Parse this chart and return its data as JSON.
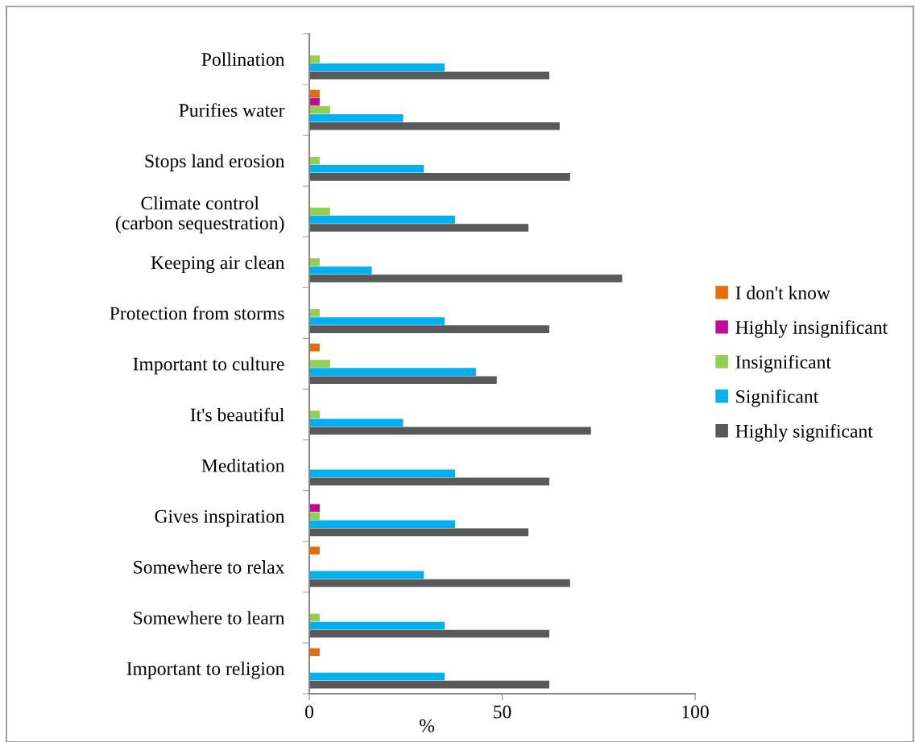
{
  "chart_data": {
    "type": "bar",
    "orientation": "horizontal",
    "xlabel": "%",
    "categories": [
      "Pollination",
      "Purifies water",
      "Stops land erosion",
      "Climate control (carbon sequestration)",
      "Keeping air clean",
      "Protection from storms",
      "Important to culture",
      "It's beautiful",
      "Meditation",
      "Gives inspiration",
      "Somewhere to relax",
      "Somewhere to learn",
      "Important to religion"
    ],
    "series": [
      {
        "name": "I don't know",
        "color": "#e46c0a",
        "values": [
          null,
          2.7,
          null,
          null,
          null,
          null,
          2.7,
          null,
          null,
          null,
          2.7,
          null,
          2.7
        ]
      },
      {
        "name": "Highly insignificant",
        "color": "#c00b9a",
        "values": [
          null,
          2.7,
          null,
          null,
          null,
          null,
          null,
          null,
          null,
          2.7,
          null,
          null,
          null
        ]
      },
      {
        "name": "Insignificant",
        "color": "#92d050",
        "values": [
          2.7,
          5.4,
          2.7,
          5.4,
          2.7,
          2.7,
          5.4,
          2.7,
          null,
          2.7,
          null,
          2.7,
          null
        ]
      },
      {
        "name": "Significant",
        "color": "#00b0f0",
        "values": [
          35.1,
          24.3,
          29.7,
          37.8,
          16.2,
          35.1,
          43.2,
          24.3,
          37.8,
          37.8,
          29.7,
          35.1,
          35.1
        ]
      },
      {
        "name": "Highly significant",
        "color": "#595959",
        "values": [
          62.2,
          64.9,
          67.6,
          56.8,
          81.1,
          62.2,
          48.6,
          73.0,
          62.2,
          56.8,
          67.6,
          62.2,
          62.2
        ]
      }
    ],
    "xlim": [
      0,
      100
    ],
    "xticks": [
      0,
      50,
      100
    ],
    "legend": "right",
    "grid": false
  }
}
